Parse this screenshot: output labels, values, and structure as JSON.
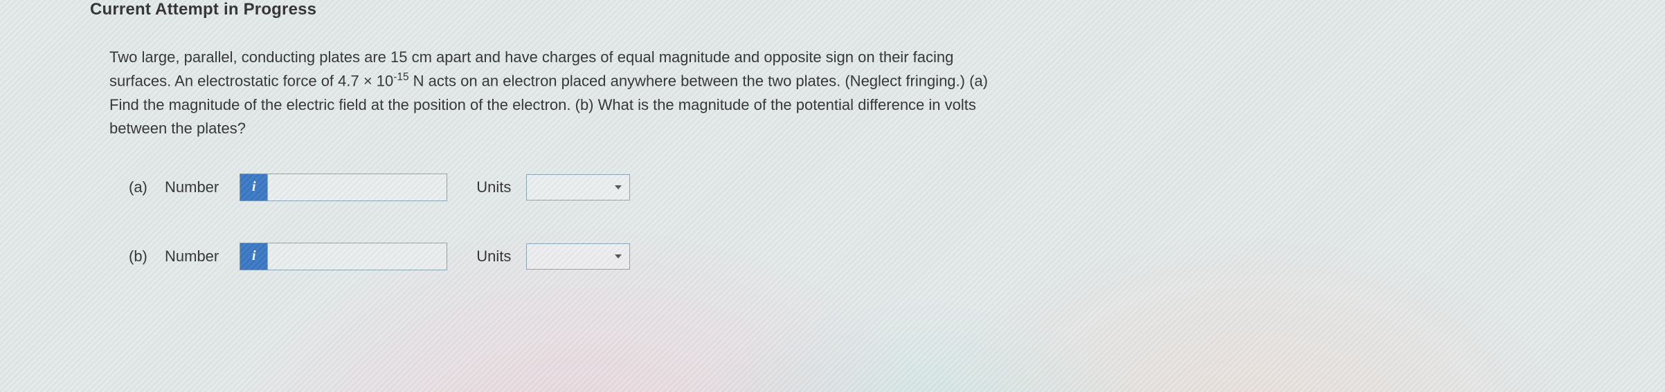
{
  "header_fragment": "Current Attempt in Progress",
  "question": {
    "text_html": "Two large, parallel, conducting plates are 15 cm apart and have charges of equal magnitude and opposite sign on their facing surfaces. An electrostatic force of 4.7 × 10<sup>-15</sup> N acts on an electron placed anywhere between the two plates. (Neglect fringing.) (a) Find the magnitude of the electric field at the position of the electron. (b) What is the magnitude of the potential difference in volts between the plates?"
  },
  "parts": {
    "a": {
      "part_label": "(a)",
      "number_label": "Number",
      "info_glyph": "i",
      "number_value": "",
      "units_label": "Units",
      "units_value": ""
    },
    "b": {
      "part_label": "(b)",
      "number_label": "Number",
      "info_glyph": "i",
      "number_value": "",
      "units_label": "Units",
      "units_value": ""
    }
  },
  "colors": {
    "info_button_bg": "#3b78c4",
    "input_border": "#8aa6b8",
    "text": "#333333",
    "body_bg_base": "#e4e9ea"
  }
}
